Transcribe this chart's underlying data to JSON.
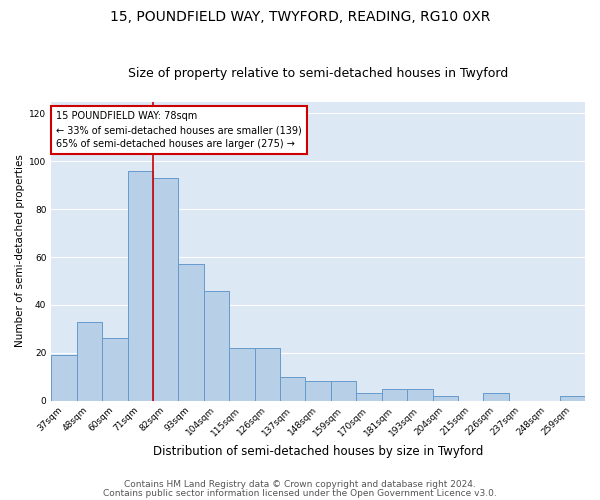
{
  "title": "15, POUNDFIELD WAY, TWYFORD, READING, RG10 0XR",
  "subtitle": "Size of property relative to semi-detached houses in Twyford",
  "xlabel": "Distribution of semi-detached houses by size in Twyford",
  "ylabel": "Number of semi-detached properties",
  "categories": [
    "37sqm",
    "48sqm",
    "60sqm",
    "71sqm",
    "82sqm",
    "93sqm",
    "104sqm",
    "115sqm",
    "126sqm",
    "137sqm",
    "148sqm",
    "159sqm",
    "170sqm",
    "181sqm",
    "193sqm",
    "204sqm",
    "215sqm",
    "226sqm",
    "237sqm",
    "248sqm",
    "259sqm"
  ],
  "values": [
    19,
    33,
    26,
    96,
    93,
    57,
    46,
    22,
    22,
    10,
    8,
    8,
    3,
    5,
    5,
    2,
    0,
    3,
    0,
    0,
    2
  ],
  "bar_color": "#b8cfe8",
  "bar_edge_color": "#6699cc",
  "vline_color": "#cc0000",
  "annotation_title": "15 POUNDFIELD WAY: 78sqm",
  "annotation_line1": "← 33% of semi-detached houses are smaller (139)",
  "annotation_line2": "65% of semi-detached houses are larger (275) →",
  "annotation_box_color": "#ffffff",
  "annotation_box_edge_color": "#cc0000",
  "ylim": [
    0,
    125
  ],
  "yticks": [
    0,
    20,
    40,
    60,
    80,
    100,
    120
  ],
  "footer1": "Contains HM Land Registry data © Crown copyright and database right 2024.",
  "footer2": "Contains public sector information licensed under the Open Government Licence v3.0.",
  "background_color": "#ffffff",
  "plot_bg_color": "#dde8f5",
  "grid_color": "#ffffff",
  "title_fontsize": 10,
  "subtitle_fontsize": 9,
  "xlabel_fontsize": 8.5,
  "ylabel_fontsize": 7.5,
  "tick_fontsize": 6.5,
  "annotation_fontsize": 7,
  "footer_fontsize": 6.5
}
